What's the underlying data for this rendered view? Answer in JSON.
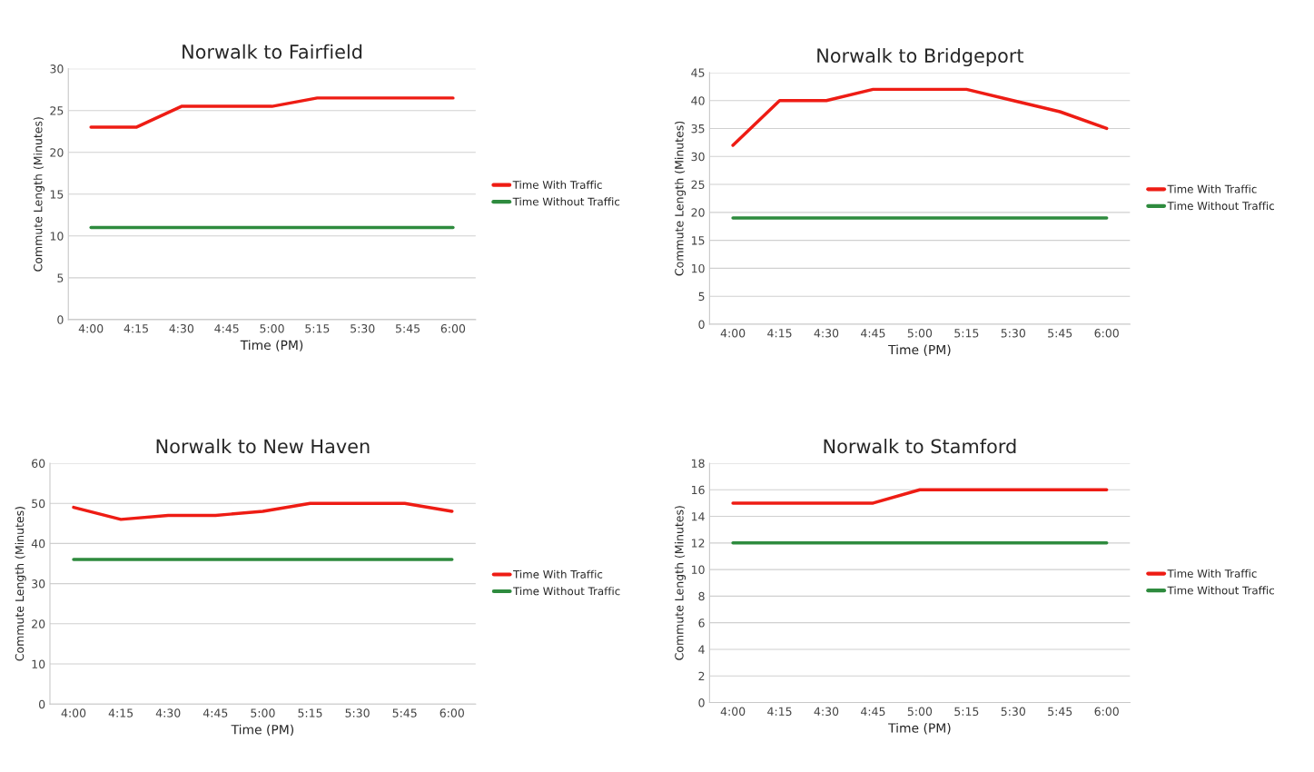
{
  "chart_data": [
    {
      "type": "line",
      "title": "Norwalk to Fairfield",
      "xlabel": "Time (PM)",
      "ylabel": "Commute Length (Minutes)",
      "categories": [
        "4:00",
        "4:15",
        "4:30",
        "4:45",
        "5:00",
        "5:15",
        "5:30",
        "5:45",
        "6:00"
      ],
      "ylim": [
        0,
        30
      ],
      "yticks": [
        0,
        5,
        10,
        15,
        20,
        25,
        30
      ],
      "grid": "y",
      "legend": "right",
      "series": [
        {
          "name": "Time With Traffic",
          "color": "#ee1c14",
          "values": [
            23,
            23,
            25.5,
            25.5,
            25.5,
            26.5,
            26.5,
            26.5,
            26.5
          ]
        },
        {
          "name": "Time Without Traffic",
          "color": "#2e8b3e",
          "values": [
            11,
            11,
            11,
            11,
            11,
            11,
            11,
            11,
            11
          ]
        }
      ]
    },
    {
      "type": "line",
      "title": "Norwalk to Bridgeport",
      "xlabel": "Time (PM)",
      "ylabel": "Commute Length (Minutes)",
      "categories": [
        "4:00",
        "4:15",
        "4:30",
        "4:45",
        "5:00",
        "5:15",
        "5:30",
        "5:45",
        "6:00"
      ],
      "ylim": [
        0,
        45
      ],
      "yticks": [
        0,
        5,
        10,
        15,
        20,
        25,
        30,
        35,
        40,
        45
      ],
      "grid": "y",
      "legend": "right",
      "series": [
        {
          "name": "Time With Traffic",
          "color": "#ee1c14",
          "values": [
            32,
            40,
            40,
            42,
            42,
            42,
            40,
            38,
            35
          ]
        },
        {
          "name": "Time Without Traffic",
          "color": "#2e8b3e",
          "values": [
            19,
            19,
            19,
            19,
            19,
            19,
            19,
            19,
            19
          ]
        }
      ]
    },
    {
      "type": "line",
      "title": "Norwalk to New Haven",
      "xlabel": "Time (PM)",
      "ylabel": "Commute Length (Minutes)",
      "categories": [
        "4:00",
        "4:15",
        "4:30",
        "4:45",
        "5:00",
        "5:15",
        "5:30",
        "5:45",
        "6:00"
      ],
      "ylim": [
        0,
        60
      ],
      "yticks": [
        0,
        10,
        20,
        30,
        40,
        50,
        60
      ],
      "grid": "y",
      "legend": "right",
      "series": [
        {
          "name": "Time With Traffic",
          "color": "#ee1c14",
          "values": [
            49,
            46,
            47,
            47,
            48,
            50,
            50,
            50,
            48
          ]
        },
        {
          "name": "Time Without Traffic",
          "color": "#2e8b3e",
          "values": [
            36,
            36,
            36,
            36,
            36,
            36,
            36,
            36,
            36
          ]
        }
      ]
    },
    {
      "type": "line",
      "title": "Norwalk to Stamford",
      "xlabel": "Time (PM)",
      "ylabel": "Commute Length (Minutes)",
      "categories": [
        "4:00",
        "4:15",
        "4:30",
        "4:45",
        "5:00",
        "5:15",
        "5:30",
        "5:45",
        "6:00"
      ],
      "ylim": [
        0,
        18
      ],
      "yticks": [
        0,
        2,
        4,
        6,
        8,
        10,
        12,
        14,
        16,
        18
      ],
      "grid": "y",
      "legend": "right",
      "series": [
        {
          "name": "Time With Traffic",
          "color": "#ee1c14",
          "values": [
            15,
            15,
            15,
            15,
            16,
            16,
            16,
            16,
            16
          ]
        },
        {
          "name": "Time Without Traffic",
          "color": "#2e8b3e",
          "values": [
            12,
            12,
            12,
            12,
            12,
            12,
            12,
            12,
            12
          ]
        }
      ]
    }
  ]
}
